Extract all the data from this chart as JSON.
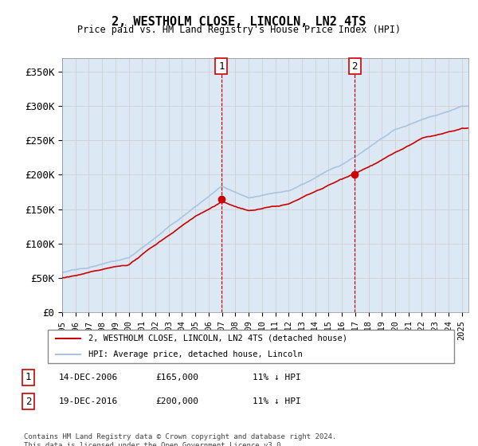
{
  "title": "2, WESTHOLM CLOSE, LINCOLN, LN2 4TS",
  "subtitle": "Price paid vs. HM Land Registry's House Price Index (HPI)",
  "ylabel_ticks": [
    "£0",
    "£50K",
    "£100K",
    "£150K",
    "£200K",
    "£250K",
    "£300K",
    "£350K"
  ],
  "ytick_values": [
    0,
    50000,
    100000,
    150000,
    200000,
    250000,
    300000,
    350000
  ],
  "ylim": [
    0,
    370000
  ],
  "xlim_start": 1995.0,
  "xlim_end": 2025.5,
  "marker1_x": 2006.95,
  "marker1_y": 165000,
  "marker1_label": "1",
  "marker2_x": 2016.95,
  "marker2_y": 200000,
  "marker2_label": "2",
  "legend_line1": "2, WESTHOLM CLOSE, LINCOLN, LN2 4TS (detached house)",
  "legend_line2": "HPI: Average price, detached house, Lincoln",
  "table_row1": [
    "1",
    "14-DEC-2006",
    "£165,000",
    "11% ↓ HPI"
  ],
  "table_row2": [
    "2",
    "19-DEC-2016",
    "£200,000",
    "11% ↓ HPI"
  ],
  "footnote": "Contains HM Land Registry data © Crown copyright and database right 2024.\nThis data is licensed under the Open Government Licence v3.0.",
  "hpi_color": "#aac4e0",
  "price_color": "#cc0000",
  "marker_color": "#cc0000",
  "dashed_line_color": "#cc0000",
  "grid_color": "#cccccc",
  "background_color": "#dce9f5"
}
